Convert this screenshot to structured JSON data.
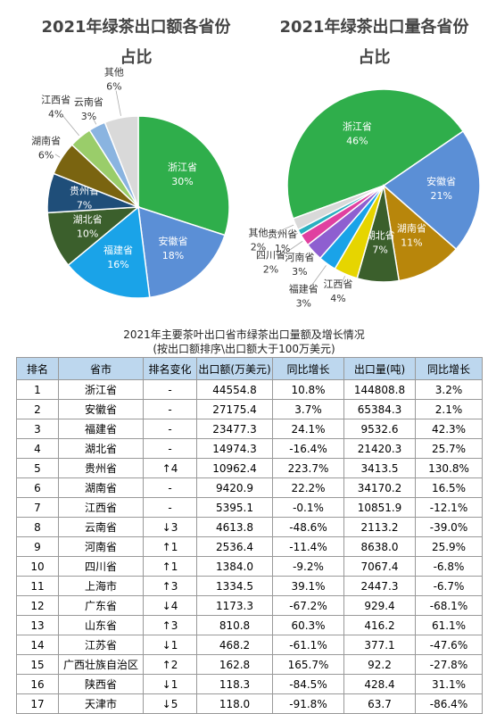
{
  "chart_data": [
    {
      "type": "pie",
      "title": "2021年绿茶出口额各省份占比",
      "categories": [
        "浙江省",
        "安徽省",
        "福建省",
        "湖北省",
        "贵州省",
        "湖南省",
        "江西省",
        "云南省",
        "其他"
      ],
      "values": [
        30,
        18,
        16,
        10,
        7,
        6,
        4,
        3,
        6
      ],
      "value_labels": [
        "30%",
        "18%",
        "16%",
        "10%",
        "7%",
        "6%",
        "4%",
        "3%",
        "6%"
      ],
      "colors": [
        "#2fae4b",
        "#5b8fd6",
        "#1aa3e8",
        "#3b5f2c",
        "#1f4e79",
        "#7a6410",
        "#9acd6a",
        "#8ab4e0",
        "#d9d9d9"
      ]
    },
    {
      "type": "pie",
      "title": "2021年绿茶出口量各省份占比",
      "categories": [
        "浙江省",
        "安徽省",
        "湖南省",
        "湖北省",
        "江西省",
        "福建省",
        "河南省",
        "四川省",
        "贵州省",
        "其他"
      ],
      "values": [
        46,
        21,
        11,
        7,
        4,
        3,
        3,
        2,
        1,
        2
      ],
      "value_labels": [
        "46%",
        "21%",
        "11%",
        "7%",
        "4%",
        "3%",
        "3%",
        "2%",
        "1%",
        "2%"
      ],
      "colors": [
        "#2fae4b",
        "#5b8fd6",
        "#b8860b",
        "#3b5f2c",
        "#e6d500",
        "#1aa3e8",
        "#8e5fd0",
        "#e040a0",
        "#2ab0c0",
        "#d9d9d9"
      ]
    }
  ],
  "table": {
    "title": "2021年主要茶叶出口省市绿茶出口量额及增长情况",
    "subtitle": "(按出口额排序\\出口额大于100万美元)",
    "header": [
      "排名",
      "省市",
      "排名变化",
      "出口额(万美元)",
      "同比增长",
      "出口量(吨)",
      "同比增长"
    ],
    "rows": [
      [
        "1",
        "浙江省",
        "-",
        "44554.8",
        "10.8%",
        "144808.8",
        "3.2%"
      ],
      [
        "2",
        "安徽省",
        "-",
        "27175.4",
        "3.7%",
        "65384.3",
        "2.1%"
      ],
      [
        "3",
        "福建省",
        "-",
        "23477.3",
        "24.1%",
        "9532.6",
        "42.3%"
      ],
      [
        "4",
        "湖北省",
        "-",
        "14974.3",
        "-16.4%",
        "21420.3",
        "25.7%"
      ],
      [
        "5",
        "贵州省",
        "↑4",
        "10962.4",
        "223.7%",
        "3413.5",
        "130.8%"
      ],
      [
        "6",
        "湖南省",
        "-",
        "9420.9",
        "22.2%",
        "34170.2",
        "16.5%"
      ],
      [
        "7",
        "江西省",
        "-",
        "5395.1",
        "-0.1%",
        "10851.9",
        "-12.1%"
      ],
      [
        "8",
        "云南省",
        "↓3",
        "4613.8",
        "-48.6%",
        "2113.2",
        "-39.0%"
      ],
      [
        "9",
        "河南省",
        "↑1",
        "2536.4",
        "-11.4%",
        "8638.0",
        "25.9%"
      ],
      [
        "10",
        "四川省",
        "↑1",
        "1384.0",
        "-9.2%",
        "7067.4",
        "-6.8%"
      ],
      [
        "11",
        "上海市",
        "↑3",
        "1334.5",
        "39.1%",
        "2447.3",
        "-6.7%"
      ],
      [
        "12",
        "广东省",
        "↓4",
        "1173.3",
        "-67.2%",
        "929.4",
        "-68.1%"
      ],
      [
        "13",
        "山东省",
        "↑3",
        "810.8",
        "60.3%",
        "416.2",
        "61.1%"
      ],
      [
        "14",
        "江苏省",
        "↓1",
        "468.2",
        "-61.1%",
        "377.1",
        "-47.6%"
      ],
      [
        "15",
        "广西壮族自治区",
        "↑2",
        "162.8",
        "165.7%",
        "92.2",
        "-27.8%"
      ],
      [
        "16",
        "陕西省",
        "↓1",
        "118.3",
        "-84.5%",
        "428.4",
        "31.1%"
      ],
      [
        "17",
        "天津市",
        "↓5",
        "118.0",
        "-91.8%",
        "63.7",
        "-86.4%"
      ]
    ]
  }
}
